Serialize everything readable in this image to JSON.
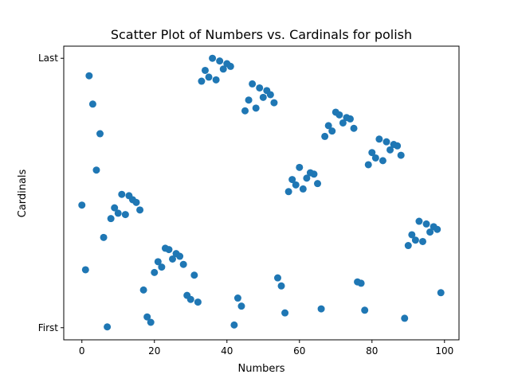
{
  "chart_data": {
    "type": "scatter",
    "title": "Scatter Plot of Numbers vs. Cardinals for polish",
    "xlabel": "Numbers",
    "ylabel": "Cardinals",
    "xlim": [
      -5,
      104
    ],
    "ylim": [
      -0.045,
      1.045
    ],
    "x_ticks": [
      0,
      20,
      40,
      60,
      80,
      100
    ],
    "y_ticks": [
      {
        "value": 0,
        "label": "First"
      },
      {
        "value": 1,
        "label": "Last"
      }
    ],
    "grid": false,
    "legend": "none",
    "marker_color": "#1f77b4",
    "points": [
      {
        "x": 0,
        "y": 0.455
      },
      {
        "x": 1,
        "y": 0.215
      },
      {
        "x": 2,
        "y": 0.935
      },
      {
        "x": 3,
        "y": 0.83
      },
      {
        "x": 5,
        "y": 0.72
      },
      {
        "x": 4,
        "y": 0.585
      },
      {
        "x": 6,
        "y": 0.335
      },
      {
        "x": 7,
        "y": 0.003
      },
      {
        "x": 8,
        "y": 0.405
      },
      {
        "x": 9,
        "y": 0.445
      },
      {
        "x": 10,
        "y": 0.425
      },
      {
        "x": 11,
        "y": 0.495
      },
      {
        "x": 12,
        "y": 0.42
      },
      {
        "x": 13,
        "y": 0.49
      },
      {
        "x": 14,
        "y": 0.475
      },
      {
        "x": 15,
        "y": 0.465
      },
      {
        "x": 16,
        "y": 0.437
      },
      {
        "x": 17,
        "y": 0.14
      },
      {
        "x": 18,
        "y": 0.04
      },
      {
        "x": 19,
        "y": 0.02
      },
      {
        "x": 20,
        "y": 0.205
      },
      {
        "x": 21,
        "y": 0.245
      },
      {
        "x": 22,
        "y": 0.225
      },
      {
        "x": 23,
        "y": 0.295
      },
      {
        "x": 24,
        "y": 0.29
      },
      {
        "x": 25,
        "y": 0.255
      },
      {
        "x": 26,
        "y": 0.275
      },
      {
        "x": 27,
        "y": 0.265
      },
      {
        "x": 28,
        "y": 0.235
      },
      {
        "x": 29,
        "y": 0.12
      },
      {
        "x": 30,
        "y": 0.105
      },
      {
        "x": 31,
        "y": 0.195
      },
      {
        "x": 32,
        "y": 0.095
      },
      {
        "x": 33,
        "y": 0.915
      },
      {
        "x": 34,
        "y": 0.955
      },
      {
        "x": 35,
        "y": 0.93
      },
      {
        "x": 36,
        "y": 1.0
      },
      {
        "x": 37,
        "y": 0.92
      },
      {
        "x": 38,
        "y": 0.99
      },
      {
        "x": 39,
        "y": 0.96
      },
      {
        "x": 40,
        "y": 0.98
      },
      {
        "x": 41,
        "y": 0.97
      },
      {
        "x": 42,
        "y": 0.01
      },
      {
        "x": 43,
        "y": 0.11
      },
      {
        "x": 44,
        "y": 0.08
      },
      {
        "x": 45,
        "y": 0.805
      },
      {
        "x": 46,
        "y": 0.845
      },
      {
        "x": 47,
        "y": 0.905
      },
      {
        "x": 48,
        "y": 0.815
      },
      {
        "x": 49,
        "y": 0.89
      },
      {
        "x": 50,
        "y": 0.855
      },
      {
        "x": 51,
        "y": 0.88
      },
      {
        "x": 52,
        "y": 0.865
      },
      {
        "x": 53,
        "y": 0.835
      },
      {
        "x": 54,
        "y": 0.185
      },
      {
        "x": 55,
        "y": 0.155
      },
      {
        "x": 56,
        "y": 0.055
      },
      {
        "x": 57,
        "y": 0.505
      },
      {
        "x": 58,
        "y": 0.55
      },
      {
        "x": 59,
        "y": 0.53
      },
      {
        "x": 60,
        "y": 0.595
      },
      {
        "x": 61,
        "y": 0.515
      },
      {
        "x": 62,
        "y": 0.555
      },
      {
        "x": 63,
        "y": 0.575
      },
      {
        "x": 64,
        "y": 0.57
      },
      {
        "x": 65,
        "y": 0.535
      },
      {
        "x": 66,
        "y": 0.07
      },
      {
        "x": 67,
        "y": 0.71
      },
      {
        "x": 68,
        "y": 0.75
      },
      {
        "x": 69,
        "y": 0.73
      },
      {
        "x": 70,
        "y": 0.8
      },
      {
        "x": 71,
        "y": 0.79
      },
      {
        "x": 72,
        "y": 0.76
      },
      {
        "x": 73,
        "y": 0.78
      },
      {
        "x": 74,
        "y": 0.775
      },
      {
        "x": 75,
        "y": 0.74
      },
      {
        "x": 76,
        "y": 0.17
      },
      {
        "x": 77,
        "y": 0.165
      },
      {
        "x": 78,
        "y": 0.065
      },
      {
        "x": 79,
        "y": 0.605
      },
      {
        "x": 80,
        "y": 0.65
      },
      {
        "x": 81,
        "y": 0.63
      },
      {
        "x": 82,
        "y": 0.7
      },
      {
        "x": 83,
        "y": 0.62
      },
      {
        "x": 84,
        "y": 0.69
      },
      {
        "x": 85,
        "y": 0.66
      },
      {
        "x": 86,
        "y": 0.68
      },
      {
        "x": 87,
        "y": 0.675
      },
      {
        "x": 88,
        "y": 0.64
      },
      {
        "x": 89,
        "y": 0.035
      },
      {
        "x": 90,
        "y": 0.305
      },
      {
        "x": 91,
        "y": 0.345
      },
      {
        "x": 92,
        "y": 0.325
      },
      {
        "x": 93,
        "y": 0.395
      },
      {
        "x": 94,
        "y": 0.32
      },
      {
        "x": 95,
        "y": 0.385
      },
      {
        "x": 96,
        "y": 0.355
      },
      {
        "x": 97,
        "y": 0.375
      },
      {
        "x": 98,
        "y": 0.365
      },
      {
        "x": 99,
        "y": 0.13
      }
    ]
  }
}
